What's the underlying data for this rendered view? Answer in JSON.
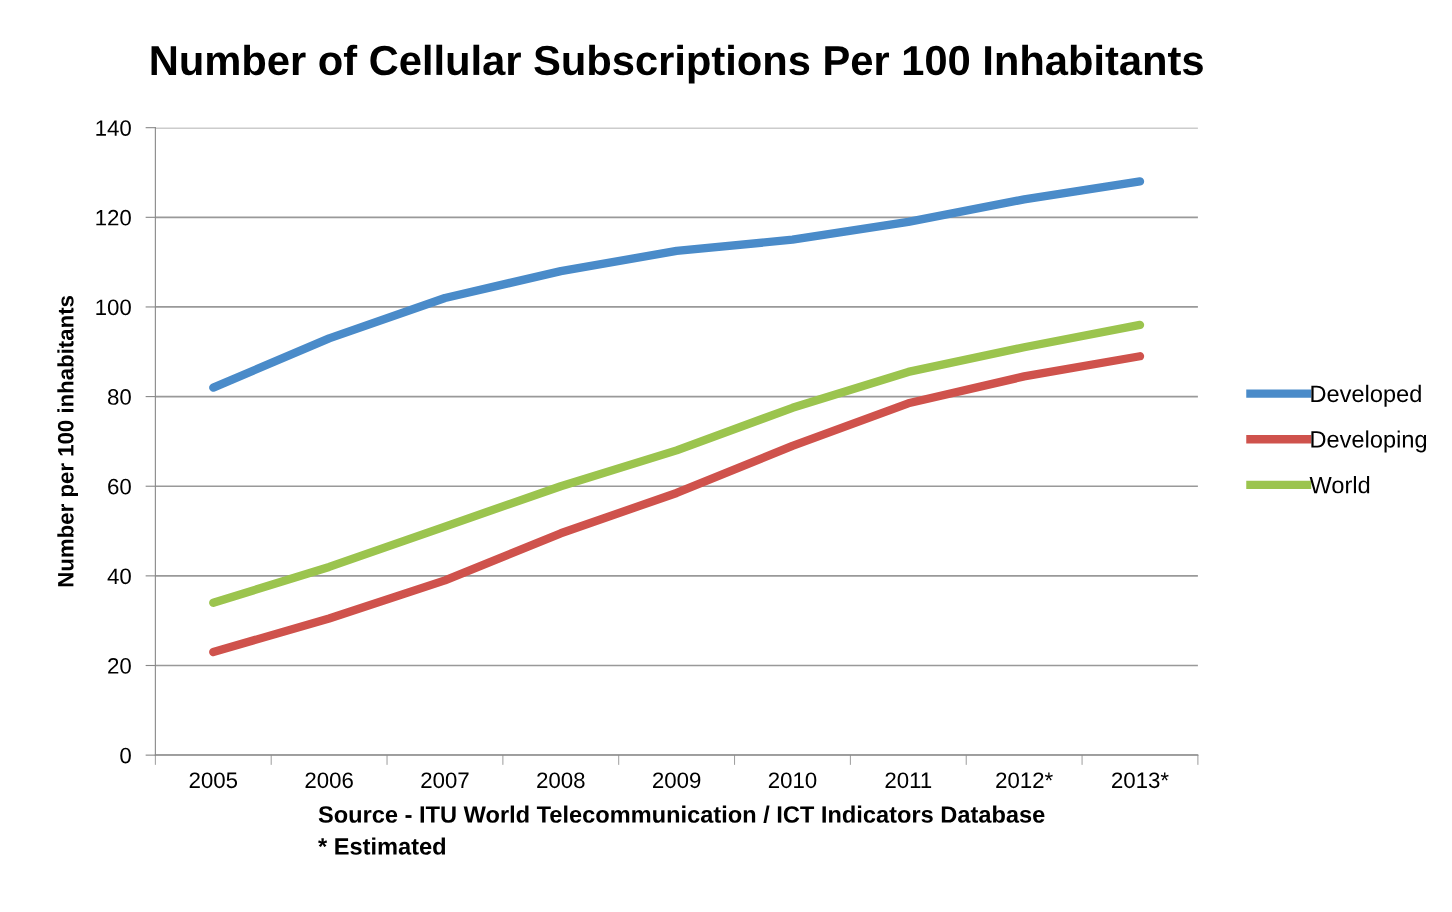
{
  "chart_data": {
    "type": "line",
    "title": "Number of Cellular Subscriptions Per 100 Inhabitants",
    "ylabel": "Number per 100 inhabitants",
    "categories": [
      "2005",
      "2006",
      "2007",
      "2008",
      "2009",
      "2010",
      "2011",
      "2012*",
      "2013*"
    ],
    "series": [
      {
        "name": "Developed",
        "color": "#4a8bc9",
        "values": [
          82,
          93,
          102,
          108,
          112.5,
          115,
          119,
          124,
          128
        ]
      },
      {
        "name": "Developing",
        "color": "#cf524c",
        "values": [
          23,
          30.5,
          39,
          49.5,
          58.5,
          69,
          78.5,
          84.5,
          89
        ]
      },
      {
        "name": "World",
        "color": "#9bc44e",
        "values": [
          34,
          42,
          51,
          60,
          68,
          77.5,
          85.5,
          91,
          96
        ]
      }
    ],
    "ylim": [
      0,
      140
    ],
    "yticks": [
      0,
      20,
      40,
      60,
      80,
      100,
      120,
      140
    ],
    "grid": "y",
    "legend": "right",
    "marker": "none",
    "line_style": "solid",
    "annotations": [
      "Source - ITU World Telecommunication / ICT Indicators Database",
      "* Estimated"
    ]
  }
}
